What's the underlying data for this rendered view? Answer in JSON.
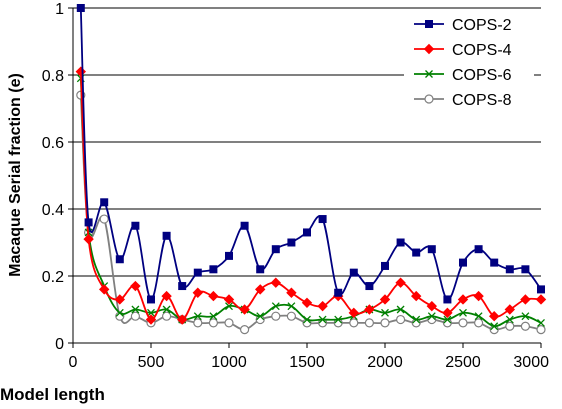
{
  "chart_data": {
    "type": "line",
    "title": "",
    "xlabel": "Model  length",
    "ylabel": "Macaque Serial  fraction  (e)",
    "xlim": [
      0,
      3000
    ],
    "ylim": [
      0,
      1
    ],
    "x_ticks": [
      0,
      500,
      1000,
      1500,
      2000,
      2500,
      3000
    ],
    "y_ticks": [
      0,
      0.2,
      0.4,
      0.6,
      0.8,
      1
    ],
    "x_tick_labels": [
      "0",
      "500",
      "1000",
      "1500",
      "2000",
      "2500",
      "3000"
    ],
    "y_tick_labels": [
      "0",
      "0.2",
      "0.4",
      "0.6",
      "0.8",
      "1"
    ],
    "grid": "horizontal",
    "legend_position": "top-right",
    "x": [
      50,
      100,
      200,
      300,
      400,
      500,
      600,
      700,
      800,
      900,
      1000,
      1100,
      1200,
      1300,
      1400,
      1500,
      1600,
      1700,
      1800,
      1900,
      2000,
      2100,
      2200,
      2300,
      2400,
      2500,
      2600,
      2700,
      2800,
      2900,
      3000
    ],
    "series": [
      {
        "name": "COPS-2",
        "color": "#000080",
        "marker": "square",
        "values": [
          1.0,
          0.36,
          0.42,
          0.25,
          0.35,
          0.13,
          0.32,
          0.17,
          0.21,
          0.22,
          0.26,
          0.35,
          0.22,
          0.28,
          0.3,
          0.33,
          0.37,
          0.15,
          0.21,
          0.17,
          0.23,
          0.3,
          0.27,
          0.28,
          0.13,
          0.24,
          0.28,
          0.24,
          0.22,
          0.22,
          0.16
        ]
      },
      {
        "name": "COPS-4",
        "color": "#ff0000",
        "marker": "diamond",
        "values": [
          0.81,
          0.31,
          0.16,
          0.13,
          0.17,
          0.07,
          0.14,
          0.07,
          0.15,
          0.14,
          0.13,
          0.1,
          0.16,
          0.18,
          0.15,
          0.12,
          0.11,
          0.14,
          0.09,
          0.1,
          0.13,
          0.18,
          0.14,
          0.11,
          0.09,
          0.13,
          0.14,
          0.08,
          0.1,
          0.13,
          0.13
        ]
      },
      {
        "name": "COPS-6",
        "color": "#008000",
        "marker": "x",
        "values": [
          0.79,
          0.33,
          0.17,
          0.09,
          0.1,
          0.09,
          0.1,
          0.07,
          0.08,
          0.08,
          0.11,
          0.1,
          0.08,
          0.11,
          0.11,
          0.07,
          0.07,
          0.07,
          0.08,
          0.1,
          0.09,
          0.1,
          0.07,
          0.08,
          0.07,
          0.09,
          0.08,
          0.05,
          0.07,
          0.08,
          0.06
        ]
      },
      {
        "name": "COPS-8",
        "color": "#808080",
        "marker": "circle",
        "values": [
          0.74,
          0.33,
          0.37,
          0.08,
          0.08,
          0.06,
          0.08,
          0.07,
          0.06,
          0.06,
          0.06,
          0.04,
          0.07,
          0.08,
          0.08,
          0.06,
          0.06,
          0.06,
          0.06,
          0.06,
          0.06,
          0.07,
          0.06,
          0.07,
          0.06,
          0.06,
          0.06,
          0.04,
          0.05,
          0.05,
          0.04
        ]
      }
    ]
  }
}
